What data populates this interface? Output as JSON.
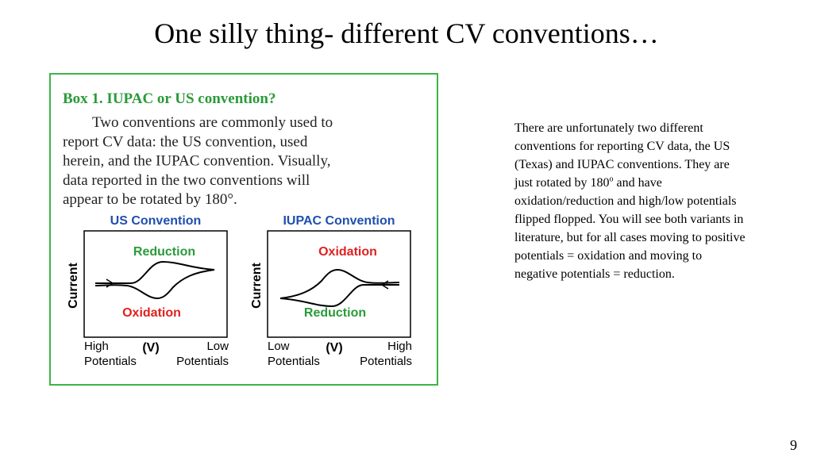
{
  "slide": {
    "title": "One silly thing- different CV conventions…",
    "page_number": "9",
    "box": {
      "heading": "Box 1. IUPAC or US convention?",
      "body_lines": [
        "Two conventions are commonly used to",
        "report CV data: the US convention, used",
        "herein, and the IUPAC convention. Visually,",
        "data reported in the two conventions will",
        "appear to be rotated by 180°."
      ],
      "panels": [
        {
          "title": "US Convention",
          "top_label": "Reduction",
          "bottom_label": "Oxidation",
          "y_label": "Current",
          "x_left": [
            "High",
            "Potentials"
          ],
          "x_mid": "(V)",
          "x_right": [
            "Low",
            "Potentials"
          ]
        },
        {
          "title": "IUPAC Convention",
          "top_label": "Oxidation",
          "bottom_label": "Reduction",
          "y_label": "Current",
          "x_left": [
            "Low",
            "Potentials"
          ],
          "x_mid": "(V)",
          "x_right": [
            "High",
            "Potentials"
          ]
        }
      ]
    },
    "notes": {
      "before": "There are unfortunately two different conventions for reporting CV data, the US (Texas) and IUPAC conventions. They are just rotated by 180",
      "sup": "o",
      "after": " and have oxidation/reduction and high/low potentials flipped flopped. You will see both variants in literature, but for all cases moving to positive potentials = oxidation and moving to negative potentials = reduction."
    }
  }
}
